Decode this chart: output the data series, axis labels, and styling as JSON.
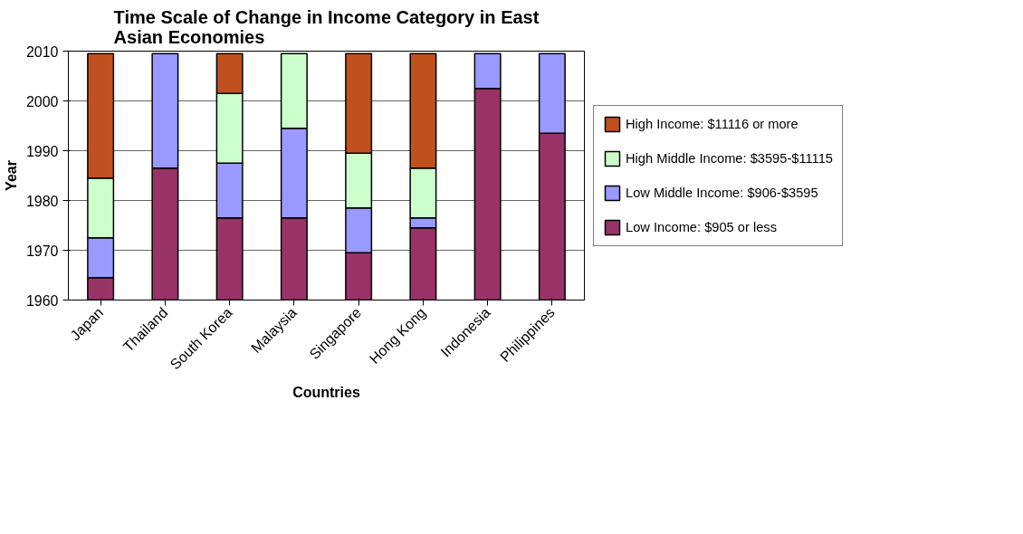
{
  "chart_data": {
    "type": "bar",
    "title": "Time Scale of Change in Income Category in East Asian Economies",
    "xlabel": "Countries",
    "ylabel": "Year",
    "categories": [
      "Japan",
      "Thailand",
      "South Korea",
      "Malaysia",
      "Singapore",
      "Hong Kong",
      "Indonesia",
      "Philippines"
    ],
    "series": [
      {
        "name": "Low Income: $905 or less",
        "color": "#993366",
        "base": [
          1960,
          1960,
          1960,
          1960,
          1960,
          1960,
          1960,
          1960
        ],
        "values": [
          4.5,
          26.5,
          16.5,
          16.5,
          9.5,
          14.5,
          42.5,
          33.5
        ]
      },
      {
        "name": "Low Middle Income: $906-$3595",
        "color": "#9999ff",
        "base": [
          1964.5,
          1986.5,
          1976.5,
          1976.5,
          1969.5,
          1974.5,
          2002.5,
          1993.5
        ],
        "values": [
          8,
          23,
          11,
          18,
          9,
          2,
          7,
          16
        ]
      },
      {
        "name": "High Middle Income: $3595-$11115",
        "color": "#ccffcc",
        "base": [
          1972.5,
          null,
          1987.5,
          1994.5,
          1978.5,
          1976.5,
          null,
          null
        ],
        "values": [
          12,
          null,
          14,
          15,
          11,
          10,
          null,
          null
        ]
      },
      {
        "name": "High Income: $11116 or more",
        "color": "#c0501e",
        "base": [
          1984.5,
          null,
          2001.5,
          null,
          1989.5,
          1986.5,
          null,
          null
        ],
        "values": [
          25,
          null,
          8,
          null,
          20,
          23,
          null,
          null
        ]
      }
    ],
    "ylim": [
      1960,
      2010
    ],
    "yticks": [
      1960,
      1970,
      1980,
      1990,
      2000,
      2010
    ],
    "grid": "y",
    "legend": "right"
  }
}
